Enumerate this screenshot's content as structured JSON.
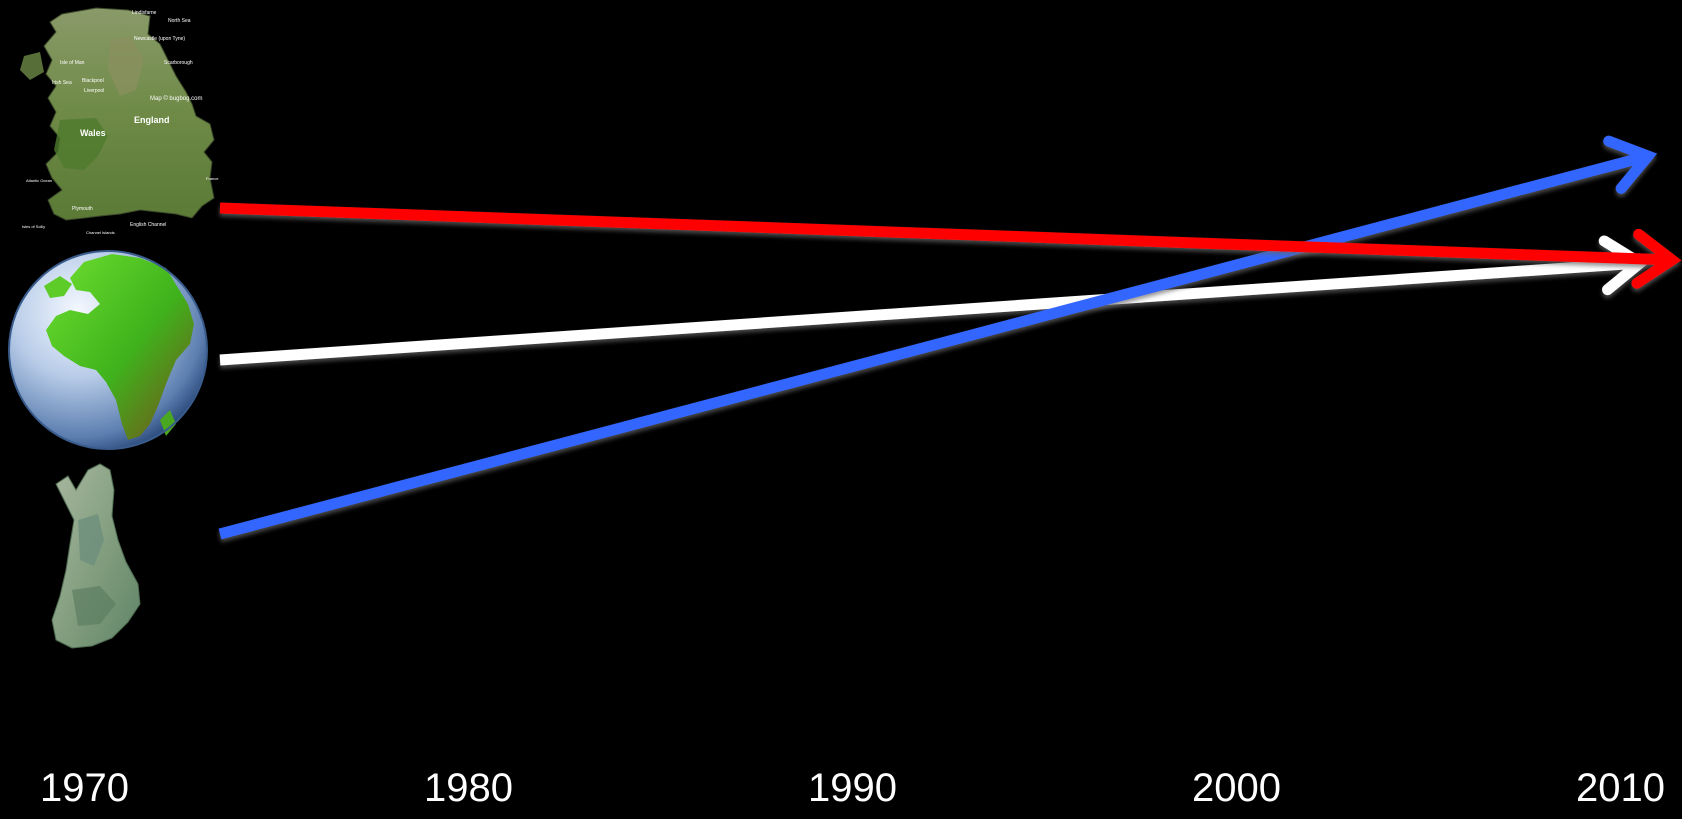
{
  "timeline": {
    "ticks": [
      "1970",
      "1980",
      "1990",
      "2000",
      "2010"
    ]
  },
  "regions": [
    {
      "icon": "england-wales-map-icon",
      "color": "#ff0000"
    },
    {
      "icon": "earth-globe-icon",
      "color": "#ffffff"
    },
    {
      "icon": "finland-map-icon",
      "color": "#3366ff"
    }
  ],
  "map_labels": {
    "england": "England",
    "wales": "Wales",
    "credit": "Map © bugbog.com",
    "north_sea": "North Sea",
    "irish_sea": "Irish Sea",
    "english_channel": "English Channel",
    "atlantic_ocean": "Atlantic Ocean",
    "channel_islands": "Channel Islands",
    "france": "France",
    "lindisfarne": "Lindisfarne",
    "newcastle": "Newcastle (upon Tyne)",
    "scarborough": "Scarborough",
    "liverpool": "Liverpool",
    "blackpool": "Blackpool",
    "isle_of_man": "Isle of Man",
    "plymouth": "Plymouth",
    "isles_of_scilly": "Isles of Scilly"
  },
  "colors": {
    "background": "#000000",
    "uk_trend": "#ff0000",
    "world_trend": "#ffffff",
    "finland_trend": "#3366ff"
  }
}
